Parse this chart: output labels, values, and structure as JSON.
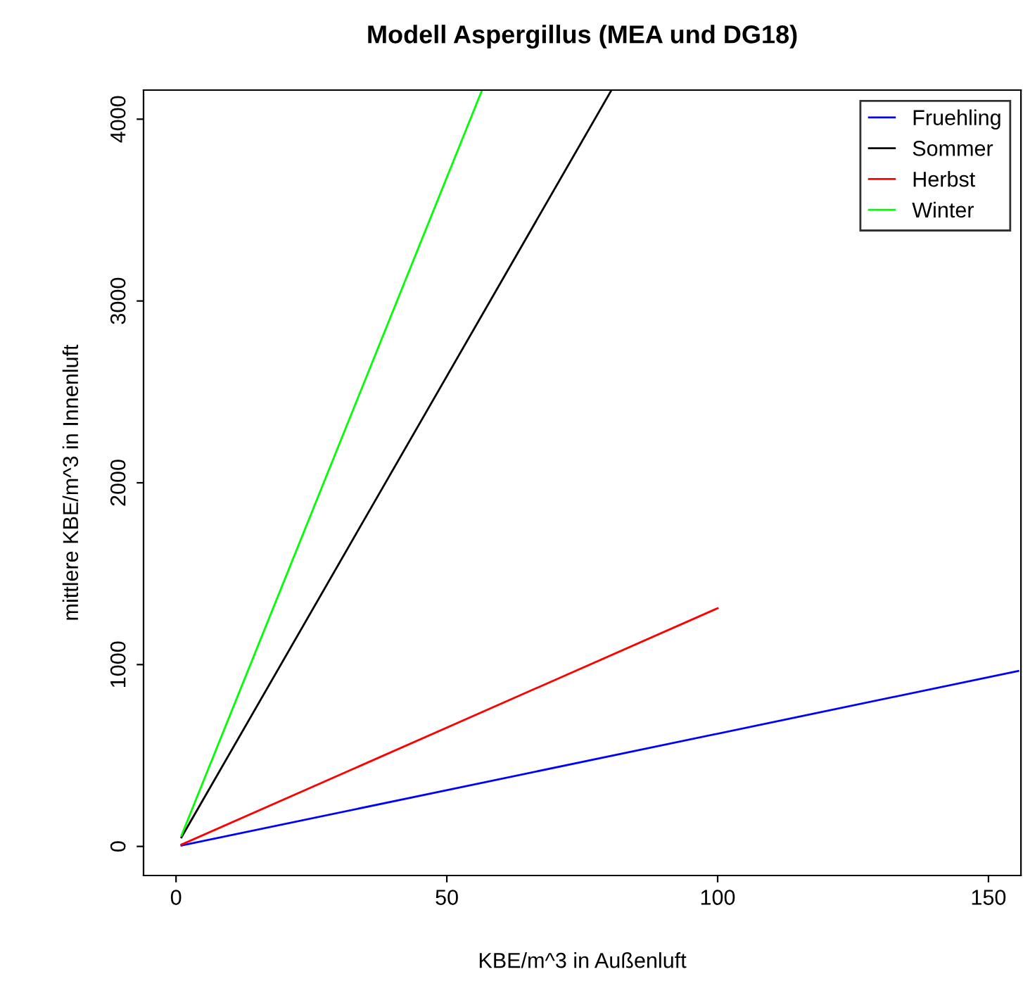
{
  "chart_data": {
    "type": "line",
    "title": "Modell Aspergillus (MEA und DG18)",
    "xlabel": "KBE/m^3 in Außenluft",
    "ylabel": "mittlere KBE/m^3 in Innenluft",
    "xlim": [
      -6,
      156
    ],
    "ylim": [
      -160,
      4160
    ],
    "xticks": [
      0,
      50,
      100,
      150
    ],
    "yticks": [
      0,
      1000,
      2000,
      3000,
      4000
    ],
    "grid": false,
    "legend": "top right",
    "marker": "none",
    "line_style": "solid",
    "series": [
      {
        "name": "Fruehling",
        "color": "#0000ff",
        "x": [
          1,
          155.5
        ],
        "values": [
          5,
          965
        ]
      },
      {
        "name": "Sommer",
        "color": "#000000",
        "x": [
          1,
          80.4
        ],
        "values": [
          50,
          4160
        ]
      },
      {
        "name": "Herbst",
        "color": "#ff0000",
        "x": [
          1,
          100
        ],
        "values": [
          10,
          1310
        ]
      },
      {
        "name": "Winter",
        "color": "#00ff00",
        "x": [
          1,
          56.5
        ],
        "values": [
          60,
          4160
        ]
      }
    ]
  }
}
